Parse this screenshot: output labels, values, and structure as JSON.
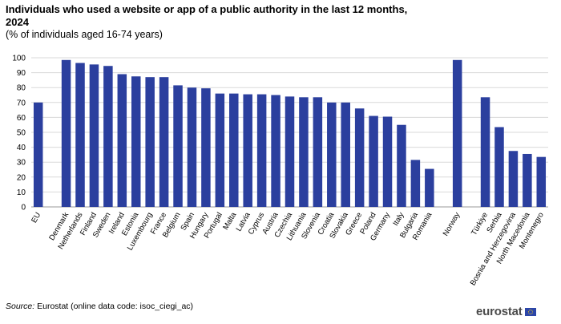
{
  "chart_data": {
    "type": "bar",
    "title": "Individuals who used a website or app of a public authority in the last 12 months, 2024",
    "subtitle": "(% of individuals aged 16-74 years)",
    "xlabel": "",
    "ylabel": "",
    "ylim": [
      0,
      100
    ],
    "yticks": [
      0,
      10,
      20,
      30,
      40,
      50,
      60,
      70,
      80,
      90,
      100
    ],
    "grid": true,
    "legend": "none",
    "color": "#2b3f9e",
    "categories": [
      "EU",
      "",
      "Denmark",
      "Netherlands",
      "Finland",
      "Sweden",
      "Ireland",
      "Estonia",
      "Luxembourg",
      "France",
      "Belgium",
      "Spain",
      "Hungary",
      "Portugal",
      "Malta",
      "Latvia",
      "Cyprus",
      "Austria",
      "Czechia",
      "Lithuania",
      "Slovenia",
      "Croatia",
      "Slovakia",
      "Greece",
      "Poland",
      "Germany",
      "Italy",
      "Bulgaria",
      "Romania",
      "",
      "Norway",
      "",
      "Türkiye",
      "Serbia",
      "Bosnia and Herzegovina",
      "North Macedonia",
      "Montenegro"
    ],
    "values": [
      70,
      null,
      98.5,
      96.5,
      95.5,
      94.5,
      89,
      87.5,
      87,
      87,
      81.5,
      80,
      79.5,
      76,
      76,
      75.5,
      75.5,
      75,
      74,
      73.5,
      73.5,
      70,
      70,
      66,
      61,
      60.5,
      55,
      31.5,
      25.5,
      null,
      98.5,
      null,
      73.5,
      53.5,
      37.5,
      35.5,
      33.5
    ]
  },
  "footer": {
    "source_label": "Source:",
    "source_text": "Eurostat (online data code: isoc_ciegi_ac)",
    "logo_text": "eurostat"
  }
}
